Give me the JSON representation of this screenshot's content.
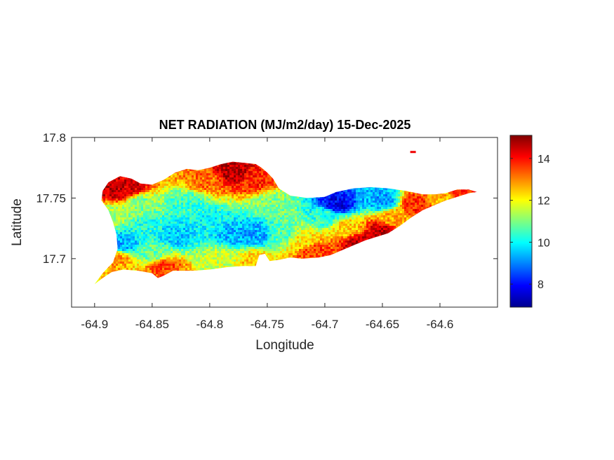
{
  "figure": {
    "title": "NET RADIATION (MJ/m2/day) 15-Dec-2025",
    "xlabel": "Longitude",
    "ylabel": "Latitude"
  },
  "axes": {
    "xlim": [
      -64.92,
      -64.55
    ],
    "ylim": [
      17.66,
      17.8
    ],
    "xticks": [
      {
        "value": -64.9,
        "label": "-64.9"
      },
      {
        "value": -64.85,
        "label": "-64.85"
      },
      {
        "value": -64.8,
        "label": "-64.8"
      },
      {
        "value": -64.75,
        "label": "-64.75"
      },
      {
        "value": -64.7,
        "label": "-64.7"
      },
      {
        "value": -64.65,
        "label": "-64.65"
      },
      {
        "value": -64.6,
        "label": "-64.6"
      }
    ],
    "yticks": [
      {
        "value": 17.7,
        "label": "17.7"
      },
      {
        "value": 17.75,
        "label": "17.75"
      },
      {
        "value": 17.8,
        "label": "17.8"
      }
    ]
  },
  "colorbar": {
    "colormap": "jet",
    "range": [
      6.9,
      15.1
    ],
    "ticks": [
      {
        "value": 8,
        "label": "8"
      },
      {
        "value": 10,
        "label": "10"
      },
      {
        "value": 12,
        "label": "12"
      },
      {
        "value": 14,
        "label": "14"
      }
    ]
  },
  "chart_data": {
    "type": "heatmap",
    "title": "NET RADIATION (MJ/m2/day) 15-Dec-2025",
    "xlabel": "Longitude",
    "ylabel": "Latitude",
    "xlim": [
      -64.92,
      -64.55
    ],
    "ylim": [
      17.66,
      17.8
    ],
    "value_range": [
      6.9,
      15.1
    ],
    "colormap": "jet",
    "island_outline": [
      [
        -64.9,
        17.679
      ],
      [
        -64.893,
        17.684
      ],
      [
        -64.885,
        17.689
      ],
      [
        -64.875,
        17.691
      ],
      [
        -64.862,
        17.69
      ],
      [
        -64.85,
        17.688
      ],
      [
        -64.845,
        17.684
      ],
      [
        -64.84,
        17.686
      ],
      [
        -64.832,
        17.69
      ],
      [
        -64.815,
        17.69
      ],
      [
        -64.8,
        17.691
      ],
      [
        -64.785,
        17.693
      ],
      [
        -64.77,
        17.694
      ],
      [
        -64.76,
        17.694
      ],
      [
        -64.757,
        17.703
      ],
      [
        -64.752,
        17.704
      ],
      [
        -64.748,
        17.698
      ],
      [
        -64.74,
        17.699
      ],
      [
        -64.73,
        17.701
      ],
      [
        -64.72,
        17.7
      ],
      [
        -64.705,
        17.701
      ],
      [
        -64.695,
        17.703
      ],
      [
        -64.685,
        17.707
      ],
      [
        -64.675,
        17.711
      ],
      [
        -64.665,
        17.715
      ],
      [
        -64.655,
        17.718
      ],
      [
        -64.645,
        17.721
      ],
      [
        -64.635,
        17.727
      ],
      [
        -64.625,
        17.734
      ],
      [
        -64.615,
        17.74
      ],
      [
        -64.605,
        17.744
      ],
      [
        -64.595,
        17.748
      ],
      [
        -64.585,
        17.751
      ],
      [
        -64.575,
        17.754
      ],
      [
        -64.568,
        17.755
      ],
      [
        -64.575,
        17.757
      ],
      [
        -64.585,
        17.757
      ],
      [
        -64.595,
        17.754
      ],
      [
        -64.605,
        17.753
      ],
      [
        -64.615,
        17.753
      ],
      [
        -64.63,
        17.756
      ],
      [
        -64.645,
        17.758
      ],
      [
        -64.66,
        17.759
      ],
      [
        -64.675,
        17.758
      ],
      [
        -64.69,
        17.755
      ],
      [
        -64.7,
        17.751
      ],
      [
        -64.715,
        17.75
      ],
      [
        -64.73,
        17.752
      ],
      [
        -64.74,
        17.758
      ],
      [
        -64.745,
        17.766
      ],
      [
        -64.75,
        17.771
      ],
      [
        -64.755,
        17.775
      ],
      [
        -64.76,
        17.778
      ],
      [
        -64.77,
        17.779
      ],
      [
        -64.78,
        17.78
      ],
      [
        -64.79,
        17.778
      ],
      [
        -64.8,
        17.775
      ],
      [
        -64.81,
        17.773
      ],
      [
        -64.82,
        17.774
      ],
      [
        -64.83,
        17.771
      ],
      [
        -64.84,
        17.765
      ],
      [
        -64.85,
        17.761
      ],
      [
        -64.86,
        17.762
      ],
      [
        -64.868,
        17.766
      ],
      [
        -64.878,
        17.768
      ],
      [
        -64.888,
        17.763
      ],
      [
        -64.893,
        17.756
      ],
      [
        -64.894,
        17.748
      ],
      [
        -64.888,
        17.74
      ],
      [
        -64.884,
        17.73
      ],
      [
        -64.881,
        17.72
      ],
      [
        -64.88,
        17.708
      ],
      [
        -64.884,
        17.697
      ],
      [
        -64.893,
        17.688
      ],
      [
        -64.9,
        17.679
      ]
    ],
    "value_zones": [
      {
        "lon": -64.88,
        "lat": 17.757,
        "value": 14.6
      },
      {
        "lon": -64.87,
        "lat": 17.76,
        "value": 14.4
      },
      {
        "lon": -64.885,
        "lat": 17.735,
        "value": 11.3
      },
      {
        "lon": -64.875,
        "lat": 17.712,
        "value": 9.3
      },
      {
        "lon": -64.88,
        "lat": 17.7,
        "value": 12.8
      },
      {
        "lon": -64.86,
        "lat": 17.745,
        "value": 11.0
      },
      {
        "lon": -64.855,
        "lat": 17.725,
        "value": 10.2
      },
      {
        "lon": -64.85,
        "lat": 17.705,
        "value": 10.8
      },
      {
        "lon": -64.84,
        "lat": 17.692,
        "value": 13.5
      },
      {
        "lon": -64.83,
        "lat": 17.72,
        "value": 9.6
      },
      {
        "lon": -64.82,
        "lat": 17.745,
        "value": 10.4
      },
      {
        "lon": -64.805,
        "lat": 17.765,
        "value": 13.2
      },
      {
        "lon": -64.78,
        "lat": 17.772,
        "value": 14.6
      },
      {
        "lon": -64.76,
        "lat": 17.765,
        "value": 13.8
      },
      {
        "lon": -64.8,
        "lat": 17.73,
        "value": 10.0
      },
      {
        "lon": -64.78,
        "lat": 17.72,
        "value": 9.4
      },
      {
        "lon": -64.76,
        "lat": 17.72,
        "value": 9.3
      },
      {
        "lon": -64.79,
        "lat": 17.7,
        "value": 11.6
      },
      {
        "lon": -64.76,
        "lat": 17.698,
        "value": 12.5
      },
      {
        "lon": -64.745,
        "lat": 17.745,
        "value": 11.0
      },
      {
        "lon": -64.735,
        "lat": 17.72,
        "value": 10.6
      },
      {
        "lon": -64.72,
        "lat": 17.715,
        "value": 12.2
      },
      {
        "lon": -64.71,
        "lat": 17.705,
        "value": 13.6
      },
      {
        "lon": -64.69,
        "lat": 17.745,
        "value": 7.8
      },
      {
        "lon": -64.7,
        "lat": 17.735,
        "value": 10.3
      },
      {
        "lon": -64.68,
        "lat": 17.725,
        "value": 12.4
      },
      {
        "lon": -64.67,
        "lat": 17.713,
        "value": 14.6
      },
      {
        "lon": -64.65,
        "lat": 17.748,
        "value": 9.2
      },
      {
        "lon": -64.64,
        "lat": 17.733,
        "value": 12.7
      },
      {
        "lon": -64.65,
        "lat": 17.722,
        "value": 14.6
      },
      {
        "lon": -64.62,
        "lat": 17.745,
        "value": 13.8
      },
      {
        "lon": -64.6,
        "lat": 17.75,
        "value": 12.6
      },
      {
        "lon": -64.58,
        "lat": 17.754,
        "value": 13.8
      }
    ],
    "outliers": [
      {
        "lon": -64.624,
        "lat": 17.788,
        "value": 14.2
      }
    ]
  }
}
